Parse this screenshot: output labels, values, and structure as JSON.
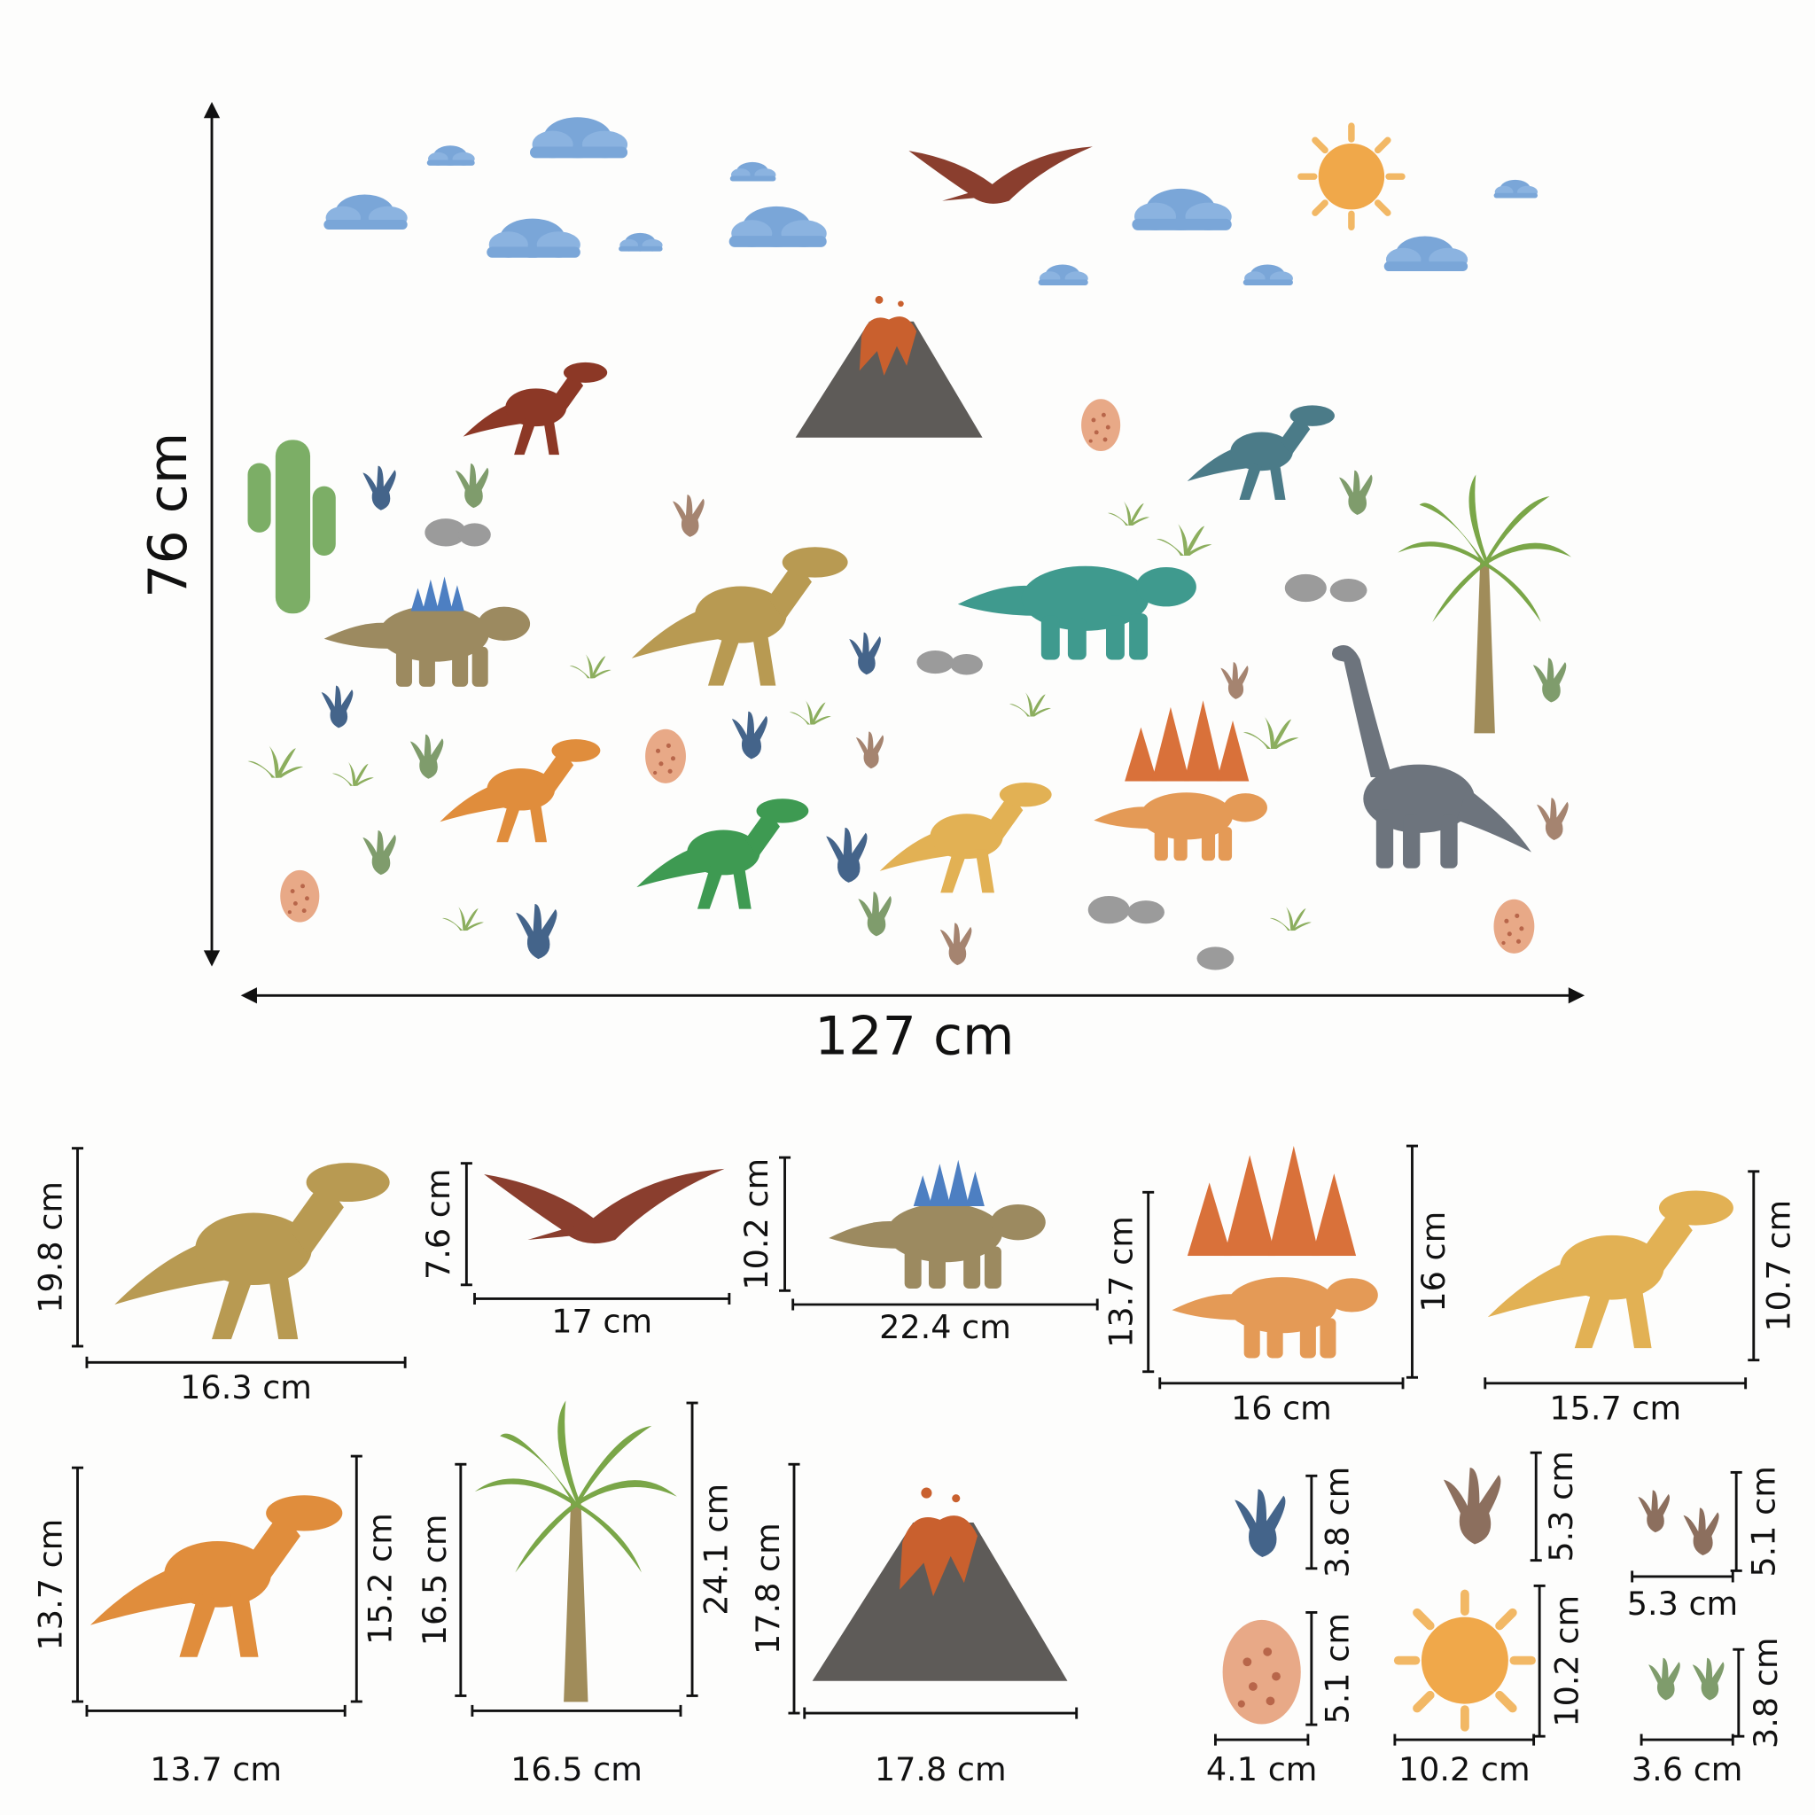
{
  "overall": {
    "height": "76 cm",
    "width": "127 cm"
  },
  "items": [
    {
      "left": "19.8 cm",
      "bottom": "16.3 cm"
    },
    {
      "left": "7.6 cm",
      "bottom": "17 cm"
    },
    {
      "left": "10.2 cm",
      "bottom": "22.4 cm"
    },
    {
      "left": "13.7 cm",
      "right": "16 cm",
      "bottom": "16 cm"
    },
    {
      "right": "10.7 cm",
      "bottom": "15.7 cm"
    },
    {
      "left": "13.7 cm",
      "right": "15.2 cm",
      "bottom": "13.7 cm"
    },
    {
      "left": "16.5 cm",
      "right": "24.1 cm",
      "bottom": "16.5 cm"
    },
    {
      "left": "17.8 cm",
      "bottom": "17.8 cm"
    },
    {
      "right": "3.8 cm"
    },
    {
      "right": "5.3 cm"
    },
    {
      "right": "5.1 cm",
      "bottom": "5.3 cm"
    },
    {
      "right": "5.1 cm",
      "bottom": "4.1 cm"
    },
    {
      "right": "10.2 cm",
      "bottom": "10.2 cm"
    },
    {
      "right": "3.8 cm",
      "bottom": "3.6 cm"
    }
  ]
}
